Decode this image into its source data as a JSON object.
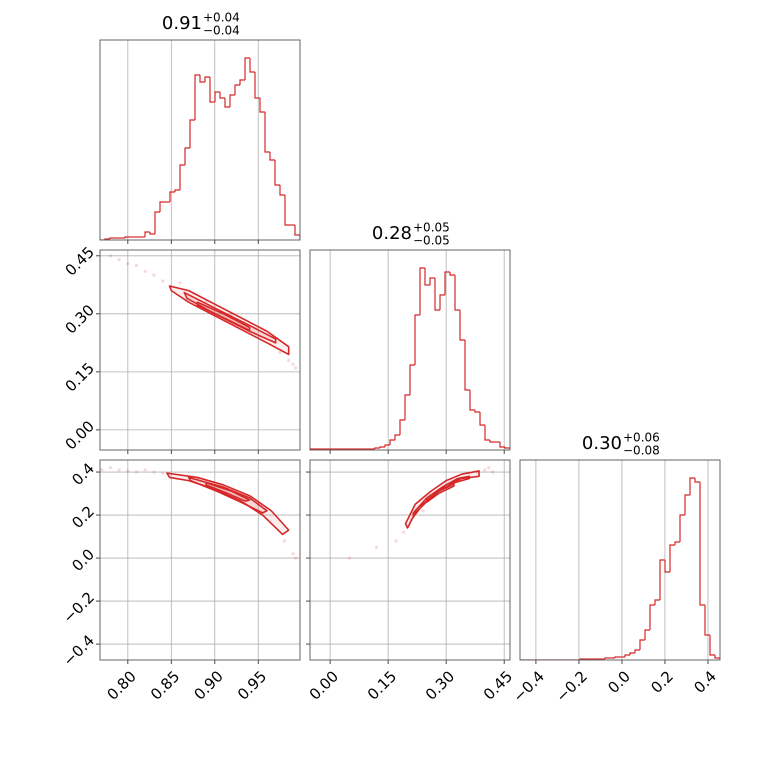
{
  "chart_data": [
    {
      "type": "histogram",
      "color": "#d62728",
      "title": {
        "value": "0.91",
        "upper": "+0.04",
        "lower": "−0.04"
      },
      "bins": [
        0.768,
        0.77375,
        0.7795,
        0.78525,
        0.791,
        0.79675,
        0.8025,
        0.80825,
        0.814,
        0.81975,
        0.8255,
        0.83125,
        0.837,
        0.84275,
        0.8485,
        0.85425,
        0.86,
        0.86575,
        0.8715,
        0.87725,
        0.883,
        0.88875,
        0.8945,
        0.90025,
        0.906,
        0.91175,
        0.9175,
        0.92325,
        0.929,
        0.93475,
        0.9405,
        0.94625,
        0.952,
        0.95775,
        0.9635,
        0.96925,
        0.975,
        0.98075,
        0.9865,
        0.99225,
        0.998
      ],
      "values": [
        0,
        1,
        2,
        2,
        2,
        3,
        3,
        3,
        3,
        8,
        6,
        28,
        38,
        38,
        48,
        50,
        75,
        92,
        120,
        165,
        158,
        163,
        138,
        148,
        142,
        133,
        145,
        155,
        160,
        182,
        168,
        142,
        128,
        88,
        80,
        55,
        45,
        15,
        15,
        5
      ],
      "xlim": [
        0.768,
        0.998
      ],
      "xticks": [
        0.8,
        0.85,
        0.9,
        0.95
      ],
      "ylim": [
        0,
        200
      ],
      "grid": true,
      "show_xticklabels": false,
      "show_yticklabels": false
    },
    {
      "type": "contour",
      "color": "#d62728",
      "contours": [
        {
          "x": [
            0.848,
            0.87,
            0.9,
            0.93,
            0.96,
            0.985,
            0.985,
            0.96,
            0.93,
            0.9,
            0.87,
            0.85
          ],
          "y": [
            0.372,
            0.36,
            0.325,
            0.29,
            0.255,
            0.215,
            0.195,
            0.225,
            0.26,
            0.295,
            0.33,
            0.36
          ]
        },
        {
          "x": [
            0.865,
            0.9,
            0.94,
            0.97,
            0.97,
            0.94,
            0.9,
            0.868
          ],
          "y": [
            0.355,
            0.315,
            0.27,
            0.235,
            0.225,
            0.255,
            0.3,
            0.34
          ]
        },
        {
          "x": [
            0.88,
            0.91,
            0.94,
            0.94,
            0.91,
            0.88
          ],
          "y": [
            0.33,
            0.3,
            0.265,
            0.257,
            0.29,
            0.322
          ]
        }
      ],
      "points": {
        "x": [
          0.78,
          0.79,
          0.8,
          0.81,
          0.82,
          0.83,
          0.84,
          0.86,
          0.89,
          0.92,
          0.95,
          0.975,
          0.99,
          0.993,
          0.985
        ],
        "y": [
          0.45,
          0.44,
          0.43,
          0.425,
          0.41,
          0.4,
          0.385,
          0.38,
          0.33,
          0.3,
          0.24,
          0.2,
          0.17,
          0.16,
          0.18
        ]
      },
      "xlim": [
        0.768,
        0.998
      ],
      "xticks": [
        0.8,
        0.85,
        0.9,
        0.95
      ],
      "ylim": [
        -0.052,
        0.465
      ],
      "yticks": [
        {
          "value": 0,
          "label": "0.00"
        },
        {
          "value": 0.15,
          "label": "0.15"
        },
        {
          "value": 0.3,
          "label": "0.30"
        },
        {
          "value": 0.45,
          "label": "0.45"
        }
      ],
      "grid": true,
      "show_xticklabels": false,
      "show_yticklabels": true
    },
    {
      "type": "histogram",
      "color": "#d62728",
      "title": {
        "value": "0.28",
        "upper": "+0.05",
        "lower": "−0.05"
      },
      "bins": [
        -0.052,
        -0.039075,
        -0.02615,
        -0.013225,
        -0.0003,
        0.012625,
        0.02555,
        0.038475,
        0.0514,
        0.064325,
        0.07725,
        0.090175,
        0.1031,
        0.116025,
        0.12895,
        0.141875,
        0.1548,
        0.167725,
        0.18065,
        0.193575,
        0.2065,
        0.219425,
        0.23235,
        0.245275,
        0.2582,
        0.271125,
        0.28405,
        0.296975,
        0.3099,
        0.322825,
        0.33575,
        0.348675,
        0.3616,
        0.374525,
        0.38745,
        0.400375,
        0.4133,
        0.426225,
        0.43915,
        0.452075,
        0.465
      ],
      "values": [
        1,
        1,
        1,
        1,
        1,
        1,
        1,
        1,
        1,
        1,
        1,
        1,
        1,
        2,
        3,
        5,
        10,
        15,
        30,
        55,
        85,
        135,
        182,
        165,
        172,
        140,
        155,
        178,
        175,
        140,
        110,
        60,
        40,
        38,
        25,
        10,
        8,
        8,
        3,
        2
      ],
      "xlim": [
        -0.052,
        0.465
      ],
      "xticks": [
        0,
        0.15,
        0.3,
        0.45
      ],
      "ylim": [
        0,
        200
      ],
      "grid": true,
      "show_xticklabels": false,
      "show_yticklabels": false
    },
    {
      "type": "contour",
      "color": "#d62728",
      "contours": [
        {
          "x": [
            0.845,
            0.88,
            0.91,
            0.94,
            0.965,
            0.985,
            0.978,
            0.955,
            0.93,
            0.9,
            0.87,
            0.848
          ],
          "y": [
            0.395,
            0.375,
            0.34,
            0.29,
            0.22,
            0.13,
            0.11,
            0.2,
            0.265,
            0.32,
            0.36,
            0.375
          ]
        },
        {
          "x": [
            0.87,
            0.91,
            0.94,
            0.96,
            0.955,
            0.93,
            0.9,
            0.872
          ],
          "y": [
            0.375,
            0.33,
            0.28,
            0.22,
            0.21,
            0.26,
            0.315,
            0.36
          ]
        },
        {
          "x": [
            0.89,
            0.92,
            0.94,
            0.935,
            0.915,
            0.89
          ],
          "y": [
            0.35,
            0.31,
            0.27,
            0.265,
            0.3,
            0.34
          ]
        }
      ],
      "points": {
        "x": [
          0.77,
          0.78,
          0.79,
          0.8,
          0.81,
          0.82,
          0.83,
          0.84,
          0.88,
          0.95,
          0.98,
          0.99,
          0.993
        ],
        "y": [
          0.41,
          0.42,
          0.41,
          0.405,
          0.4,
          0.41,
          0.4,
          0.395,
          0.37,
          0.25,
          0.08,
          0.02,
          0
        ]
      },
      "xlim": [
        0.768,
        0.998
      ],
      "xticks": [
        {
          "value": 0.8,
          "label": "0.80"
        },
        {
          "value": 0.85,
          "label": "0.85"
        },
        {
          "value": 0.9,
          "label": "0.90"
        },
        {
          "value": 0.95,
          "label": "0.95"
        }
      ],
      "ylim": [
        -0.474,
        0.456
      ],
      "yticks": [
        {
          "value": -0.4,
          "label": "−0.4"
        },
        {
          "value": -0.2,
          "label": "−0.2"
        },
        {
          "value": 0,
          "label": "0.0"
        },
        0.2,
        0.4
      ],
      "grid": true,
      "show_xticklabels": true,
      "show_yticklabels": true
    },
    {
      "type": "contour",
      "color": "#d62728",
      "contours": [
        {
          "x": [
            0.195,
            0.22,
            0.26,
            0.3,
            0.34,
            0.385,
            0.385,
            0.34,
            0.3,
            0.26,
            0.22,
            0.2
          ],
          "y": [
            0.16,
            0.25,
            0.31,
            0.36,
            0.39,
            0.405,
            0.38,
            0.37,
            0.34,
            0.28,
            0.21,
            0.14
          ]
        },
        {
          "x": [
            0.215,
            0.25,
            0.29,
            0.33,
            0.36,
            0.36,
            0.32,
            0.28,
            0.24,
            0.215
          ],
          "y": [
            0.21,
            0.28,
            0.33,
            0.37,
            0.38,
            0.37,
            0.35,
            0.31,
            0.25,
            0.19
          ]
        },
        {
          "x": [
            0.25,
            0.28,
            0.32,
            0.32,
            0.28,
            0.25
          ],
          "y": [
            0.27,
            0.31,
            0.345,
            0.335,
            0.3,
            0.26
          ]
        }
      ],
      "points": {
        "x": [
          0.05,
          0.12,
          0.17,
          0.19,
          0.21,
          0.24,
          0.33,
          0.38,
          0.4,
          0.41,
          0.42
        ],
        "y": [
          0,
          0.05,
          0.08,
          0.12,
          0.18,
          0.22,
          0.36,
          0.4,
          0.41,
          0.42,
          0.4
        ]
      },
      "xlim": [
        -0.052,
        0.465
      ],
      "xticks": [
        {
          "value": 0,
          "label": "0.00"
        },
        {
          "value": 0.15,
          "label": "0.15"
        },
        {
          "value": 0.3,
          "label": "0.30"
        },
        {
          "value": 0.45,
          "label": "0.45"
        }
      ],
      "ylim": [
        -0.474,
        0.456
      ],
      "yticks": [
        -0.4,
        -0.2,
        0,
        0.2,
        0.4
      ],
      "grid": true,
      "show_xticklabels": true,
      "show_yticklabels": false
    },
    {
      "type": "histogram",
      "color": "#d62728",
      "title": {
        "value": "0.30",
        "upper": "+0.06",
        "lower": "−0.08"
      },
      "bins": [
        -0.474,
        -0.45075,
        -0.4275,
        -0.40425,
        -0.381,
        -0.35775,
        -0.3345,
        -0.31125,
        -0.288,
        -0.26475,
        -0.2415,
        -0.21825,
        -0.195,
        -0.17175,
        -0.1485,
        -0.12525,
        -0.102,
        -0.07875,
        -0.0555,
        -0.03225,
        -0.009,
        0.01425,
        0.0375,
        0.06075,
        0.084,
        0.10725,
        0.1305,
        0.15375,
        0.177,
        0.20025,
        0.2235,
        0.24675,
        0.27,
        0.29325,
        0.3165,
        0.33975,
        0.363,
        0.38625,
        0.4095,
        0.43275,
        0.456
      ],
      "values": [
        0,
        0,
        0,
        0,
        0,
        0,
        0,
        0,
        0,
        0,
        0,
        0,
        1,
        1,
        1,
        1,
        1,
        2,
        2,
        3,
        3,
        5,
        7,
        10,
        20,
        30,
        55,
        60,
        100,
        88,
        115,
        118,
        145,
        165,
        182,
        178,
        55,
        25,
        5,
        2
      ],
      "xlim": [
        -0.474,
        0.456
      ],
      "xticks": [
        {
          "value": -0.4,
          "label": "−0.4"
        },
        {
          "value": -0.2,
          "label": "−0.2"
        },
        {
          "value": 0,
          "label": "0.0"
        },
        0.2,
        0.4
      ],
      "ylim": [
        0,
        200
      ],
      "grid": true,
      "show_xticklabels": true,
      "show_yticklabels": false
    }
  ]
}
